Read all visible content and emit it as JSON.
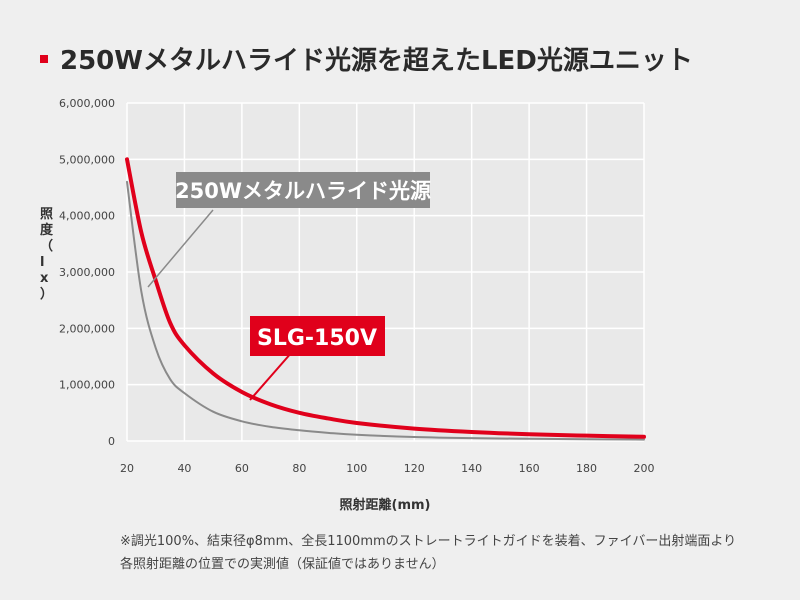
{
  "title": "250Wメタルハライド光源を超えたLED光源ユニット",
  "colors": {
    "accent": "#e0001b",
    "metal_halide": "#8a8a8a",
    "grid": "#ffffff"
  },
  "notes": [
    "※調光100%、結束径φ8mm、全長1100mmのストレートライトガイドを装着、ファイバー出射端面より",
    "各照射距離の位置での実測値（保証値ではありません）"
  ],
  "chart_data": {
    "type": "line",
    "xlabel": "照射距離(mm)",
    "ylabel": "照度（lx）",
    "xlim": [
      20,
      200
    ],
    "ylim": [
      0,
      6000000
    ],
    "x_ticks": [
      "20",
      "40",
      "60",
      "80",
      "100",
      "120",
      "140",
      "160",
      "180",
      "200"
    ],
    "y_ticks": [
      "0",
      "1,000,000",
      "2,000,000",
      "3,000,000",
      "4,000,000",
      "5,000,000",
      "6,000,000"
    ],
    "grid": true,
    "x": [
      20,
      25,
      30,
      35,
      40,
      50,
      60,
      70,
      80,
      90,
      100,
      120,
      140,
      160,
      180,
      200
    ],
    "series": [
      {
        "name": "SLG-150V",
        "color": "#e0001b",
        "values": [
          5000000,
          3700000,
          2850000,
          2100000,
          1700000,
          1200000,
          870000,
          650000,
          500000,
          400000,
          320000,
          220000,
          160000,
          120000,
          95000,
          75000
        ]
      },
      {
        "name": "250Wメタルハライド光源",
        "color": "#8a8a8a",
        "values": [
          4600000,
          2650000,
          1650000,
          1100000,
          850000,
          520000,
          350000,
          250000,
          190000,
          145000,
          110000,
          70000,
          50000,
          40000,
          32000,
          25000
        ]
      }
    ]
  }
}
